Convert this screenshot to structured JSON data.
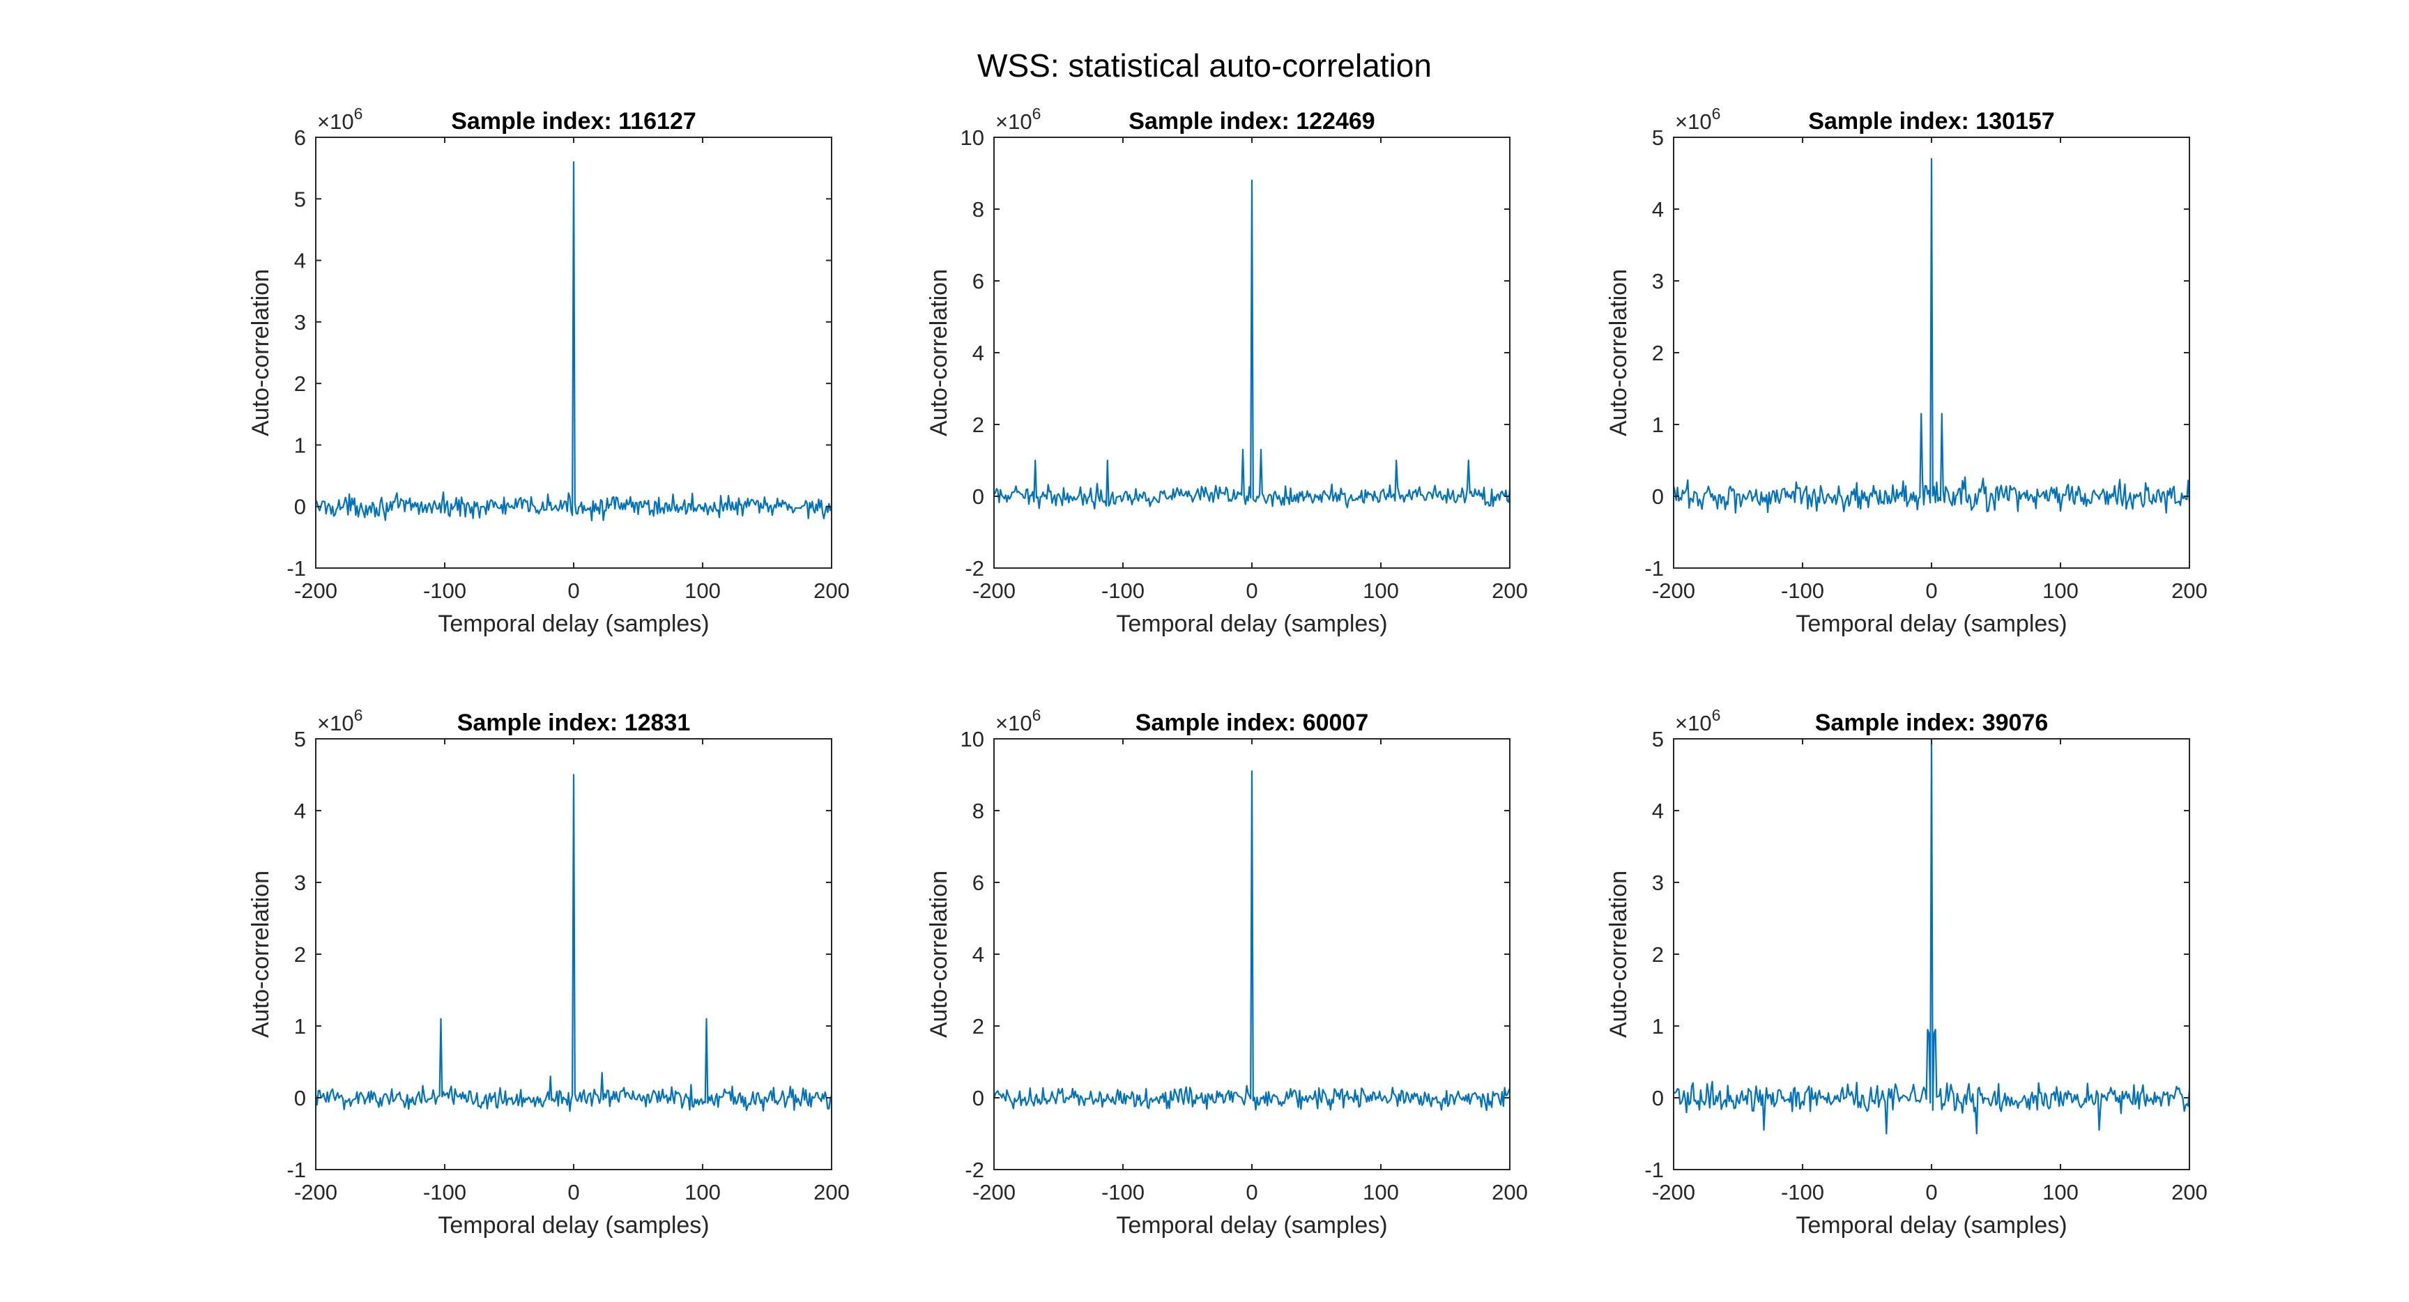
{
  "figure": {
    "title": "WSS: statistical auto-correlation",
    "line_color": "#0072bd",
    "axis_color": "#262626"
  },
  "chart_data": [
    {
      "type": "line",
      "title": "Sample index: 116127",
      "xlabel": "Temporal delay (samples)",
      "ylabel": "Auto-correlation",
      "multiplier": "×10^6",
      "xlim": [
        -200,
        200
      ],
      "ylim": [
        -1,
        6
      ],
      "xticks": [
        -200,
        -100,
        0,
        100,
        200
      ],
      "yticks": [
        -1,
        0,
        1,
        2,
        3,
        4,
        5,
        6
      ],
      "peak": 5.6,
      "noise_amplitude": 0.13,
      "spikes": [],
      "grid": false
    },
    {
      "type": "line",
      "title": "Sample index: 122469",
      "xlabel": "Temporal delay (samples)",
      "ylabel": "Auto-correlation",
      "multiplier": "×10^6",
      "xlim": [
        -200,
        200
      ],
      "ylim": [
        -2,
        10
      ],
      "xticks": [
        -200,
        -100,
        0,
        100,
        200
      ],
      "yticks": [
        -2,
        0,
        2,
        4,
        6,
        8,
        10
      ],
      "peak": 8.8,
      "noise_amplitude": 0.2,
      "spikes": [
        {
          "x": -7,
          "y": 1.3
        },
        {
          "x": 7,
          "y": 1.3
        },
        {
          "x": -168,
          "y": 1.0
        },
        {
          "x": 168,
          "y": 1.0
        },
        {
          "x": -112,
          "y": 1.0
        },
        {
          "x": 112,
          "y": 1.0
        }
      ],
      "grid": false
    },
    {
      "type": "line",
      "title": "Sample index: 130157",
      "xlabel": "Temporal delay (samples)",
      "ylabel": "Auto-correlation",
      "multiplier": "×10^6",
      "xlim": [
        -200,
        200
      ],
      "ylim": [
        -1,
        5
      ],
      "xticks": [
        -200,
        -100,
        0,
        100,
        200
      ],
      "yticks": [
        -1,
        0,
        1,
        2,
        3,
        4,
        5
      ],
      "peak": 4.7,
      "noise_amplitude": 0.15,
      "spikes": [
        {
          "x": -8,
          "y": 1.15
        },
        {
          "x": 8,
          "y": 1.15
        }
      ],
      "grid": false
    },
    {
      "type": "line",
      "title": "Sample index: 12831",
      "xlabel": "Temporal delay (samples)",
      "ylabel": "Auto-correlation",
      "multiplier": "×10^6",
      "xlim": [
        -200,
        200
      ],
      "ylim": [
        -1,
        5
      ],
      "xticks": [
        -200,
        -100,
        0,
        100,
        200
      ],
      "yticks": [
        -1,
        0,
        1,
        2,
        3,
        4,
        5
      ],
      "peak": 4.5,
      "noise_amplitude": 0.12,
      "spikes": [
        {
          "x": -103,
          "y": 1.1
        },
        {
          "x": 103,
          "y": 1.1
        },
        {
          "x": 22,
          "y": 0.35
        },
        {
          "x": -18,
          "y": 0.3
        }
      ],
      "grid": false
    },
    {
      "type": "line",
      "title": "Sample index: 60007",
      "xlabel": "Temporal delay (samples)",
      "ylabel": "Auto-correlation",
      "multiplier": "×10^6",
      "xlim": [
        -200,
        200
      ],
      "ylim": [
        -2,
        10
      ],
      "xticks": [
        -200,
        -100,
        0,
        100,
        200
      ],
      "yticks": [
        -2,
        0,
        2,
        4,
        6,
        8,
        10
      ],
      "peak": 9.1,
      "noise_amplitude": 0.22,
      "spikes": [],
      "grid": false
    },
    {
      "type": "line",
      "title": "Sample index: 39076",
      "xlabel": "Temporal delay (samples)",
      "ylabel": "Auto-correlation",
      "multiplier": "×10^6",
      "xlim": [
        -200,
        200
      ],
      "ylim": [
        -1,
        5
      ],
      "xticks": [
        -200,
        -100,
        0,
        100,
        200
      ],
      "yticks": [
        -1,
        0,
        1,
        2,
        3,
        4,
        5
      ],
      "peak": 5.0,
      "noise_amplitude": 0.14,
      "spikes": [
        {
          "x": -3,
          "y": 0.95
        },
        {
          "x": 3,
          "y": 0.95
        },
        {
          "x": -2,
          "y": 0.9
        },
        {
          "x": 2,
          "y": 0.9
        },
        {
          "x": -35,
          "y": -0.5
        },
        {
          "x": 35,
          "y": -0.5
        },
        {
          "x": -130,
          "y": -0.45
        },
        {
          "x": 130,
          "y": -0.45
        }
      ],
      "grid": false
    }
  ]
}
